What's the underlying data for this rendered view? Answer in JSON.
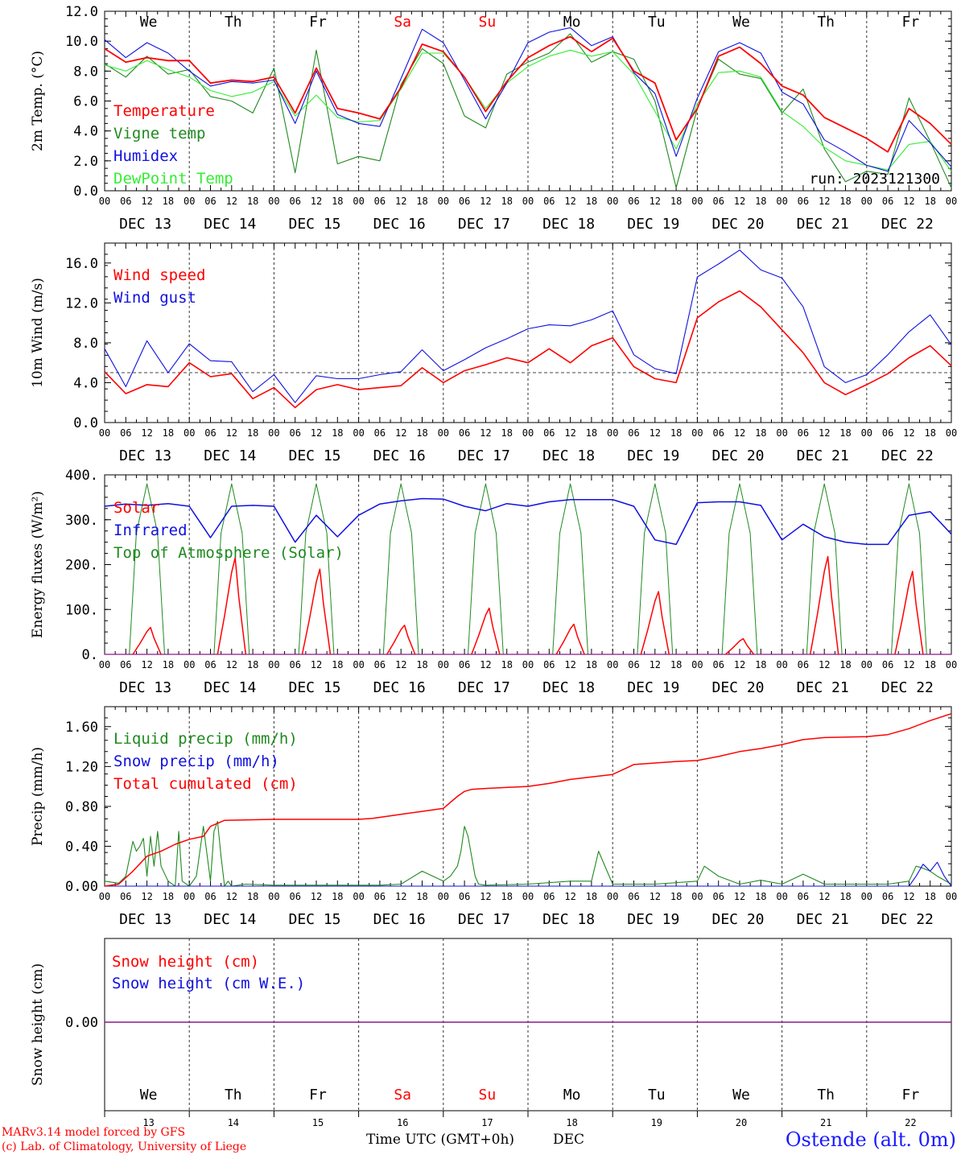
{
  "header_days": [
    "We",
    "Th",
    "Fr",
    "Sa",
    "Su",
    "Mo",
    "Tu",
    "We",
    "Th",
    "Fr"
  ],
  "weekend_days": [
    3,
    4
  ],
  "date_labels": [
    "DEC 13",
    "DEC 14",
    "DEC 15",
    "DEC 16",
    "DEC 17",
    "DEC 18",
    "DEC 19",
    "DEC 20",
    "DEC 21",
    "DEC 22"
  ],
  "hour_labels": [
    "00",
    "06",
    "12",
    "18"
  ],
  "bottom_day_numbers": [
    "13",
    "14",
    "15",
    "16",
    "17",
    "18",
    "19",
    "20",
    "21",
    "22"
  ],
  "footer": {
    "credit_line1": "MARv3.14 model forced by GFS",
    "credit_line2": "(c) Lab. of Climatology, University of Liege",
    "xaxis_title": "Time UTC (GMT+0h)",
    "month": "DEC",
    "station": "Ostende (alt. 0m)"
  },
  "run_label": "run: 2023121300",
  "colors": {
    "red": "#ff0000",
    "green": "#1f8a1f",
    "blue": "#1010e0",
    "lightgreen": "#33ee33",
    "purple": "#8a1a8a",
    "stationBlue": "#1a1aff"
  },
  "chart_data": [
    {
      "type": "line",
      "ylabel": "2m Temp. (°C)",
      "ylim": [
        0,
        12
      ],
      "y_ticks": [
        "0.0",
        "2.0",
        "4.0",
        "6.0",
        "8.0",
        "10.0",
        "12.0"
      ],
      "x_unit": "hours since DEC 13 00 UTC",
      "series": [
        {
          "name": "Temperature",
          "color": "red",
          "x": [
            0,
            6,
            12,
            18,
            24,
            30,
            36,
            42,
            48,
            54,
            60,
            66,
            72,
            78,
            84,
            90,
            96,
            102,
            108,
            114,
            120,
            126,
            132,
            138,
            144,
            150,
            156,
            162,
            168,
            174,
            180,
            186,
            192,
            198,
            204,
            210,
            216,
            222,
            228,
            234,
            240
          ],
          "y": [
            9.5,
            8.6,
            8.9,
            8.7,
            8.7,
            7.2,
            7.4,
            7.3,
            7.6,
            5.2,
            8.2,
            5.5,
            5.2,
            4.8,
            6.9,
            9.8,
            9.3,
            7.6,
            5.3,
            7.3,
            8.9,
            9.7,
            10.3,
            9.3,
            10.2,
            8.0,
            7.2,
            3.4,
            5.5,
            9.0,
            9.6,
            8.5,
            7.0,
            6.4,
            4.9,
            4.2,
            3.5,
            2.6,
            5.5,
            4.5,
            3.1
          ]
        },
        {
          "name": "Vigne temp",
          "color": "green",
          "x": [
            0,
            6,
            12,
            18,
            24,
            30,
            36,
            42,
            48,
            54,
            60,
            66,
            72,
            78,
            84,
            90,
            96,
            102,
            108,
            114,
            120,
            126,
            132,
            138,
            144,
            150,
            156,
            162,
            168,
            174,
            180,
            186,
            192,
            198,
            204,
            210,
            216,
            222,
            228,
            234,
            240
          ],
          "y": [
            8.5,
            7.6,
            9.0,
            7.8,
            8.1,
            6.3,
            6.0,
            5.2,
            8.2,
            1.2,
            9.4,
            1.8,
            2.3,
            2.0,
            7.1,
            9.5,
            8.5,
            5.0,
            4.2,
            7.8,
            8.6,
            9.2,
            10.5,
            8.6,
            9.3,
            8.8,
            6.0,
            0.2,
            5.5,
            8.8,
            7.8,
            7.5,
            5.2,
            6.8,
            2.8,
            0.6,
            1.3,
            1.1,
            6.2,
            3.3,
            0.2
          ]
        },
        {
          "name": "Humidex",
          "color": "blue",
          "x": [
            0,
            6,
            12,
            18,
            24,
            30,
            36,
            42,
            48,
            54,
            60,
            66,
            72,
            78,
            84,
            90,
            96,
            102,
            108,
            114,
            120,
            126,
            132,
            138,
            144,
            150,
            156,
            162,
            168,
            174,
            180,
            186,
            192,
            198,
            204,
            210,
            216,
            222,
            228,
            234,
            240
          ],
          "y": [
            10.1,
            8.9,
            9.9,
            9.2,
            8.0,
            7.0,
            7.3,
            7.2,
            7.4,
            4.5,
            8.0,
            5.1,
            4.5,
            4.3,
            7.5,
            10.8,
            9.9,
            7.4,
            4.8,
            7.2,
            9.9,
            10.6,
            10.9,
            9.7,
            10.3,
            7.9,
            6.5,
            2.3,
            6.2,
            9.3,
            9.9,
            9.2,
            6.6,
            5.8,
            3.4,
            2.6,
            1.7,
            1.3,
            4.7,
            3.2,
            1.6
          ]
        },
        {
          "name": "DewPoint Temp",
          "color": "lightgreen",
          "x": [
            0,
            6,
            12,
            18,
            24,
            30,
            36,
            42,
            48,
            54,
            60,
            66,
            72,
            78,
            84,
            90,
            96,
            102,
            108,
            114,
            120,
            126,
            132,
            138,
            144,
            150,
            156,
            162,
            168,
            174,
            180,
            186,
            192,
            198,
            204,
            210,
            216,
            222,
            228,
            234,
            240
          ],
          "y": [
            8.4,
            8.0,
            8.7,
            8.1,
            7.6,
            6.7,
            6.3,
            6.6,
            7.3,
            5.0,
            6.4,
            4.9,
            4.6,
            4.7,
            6.8,
            9.2,
            9.2,
            7.6,
            5.5,
            7.2,
            8.3,
            9.0,
            9.4,
            9.0,
            9.3,
            7.8,
            5.3,
            2.8,
            5.8,
            7.9,
            8.0,
            7.6,
            5.3,
            4.3,
            2.9,
            2.0,
            1.7,
            1.4,
            3.1,
            3.3,
            1.3
          ]
        }
      ]
    },
    {
      "type": "line",
      "ylabel": "10m Wind (m/s)",
      "ylim": [
        0,
        18
      ],
      "y_ticks": [
        "0.0",
        "4.0",
        "8.0",
        "12.0",
        "16.0"
      ],
      "reference_line": 5,
      "series": [
        {
          "name": "Wind speed",
          "color": "red",
          "x": [
            0,
            6,
            12,
            18,
            24,
            30,
            36,
            42,
            48,
            54,
            60,
            66,
            72,
            78,
            84,
            90,
            96,
            102,
            108,
            114,
            120,
            126,
            132,
            138,
            144,
            150,
            156,
            162,
            168,
            174,
            180,
            186,
            192,
            198,
            204,
            210,
            216,
            222,
            228,
            234,
            240
          ],
          "y": [
            5.1,
            2.9,
            3.8,
            3.6,
            6.0,
            4.6,
            4.9,
            2.4,
            3.5,
            1.5,
            3.3,
            3.8,
            3.3,
            3.5,
            3.7,
            5.5,
            4.0,
            5.2,
            5.8,
            6.5,
            6.0,
            7.4,
            6.0,
            7.7,
            8.5,
            5.6,
            4.4,
            4.0,
            10.5,
            12.1,
            13.2,
            11.6,
            9.3,
            7.0,
            4.0,
            2.8,
            3.8,
            4.9,
            6.5,
            7.7,
            5.7
          ]
        },
        {
          "name": "Wind gust",
          "color": "blue",
          "x": [
            0,
            6,
            12,
            18,
            24,
            30,
            36,
            42,
            48,
            54,
            60,
            66,
            72,
            78,
            84,
            90,
            96,
            102,
            108,
            114,
            120,
            126,
            132,
            138,
            144,
            150,
            156,
            162,
            168,
            174,
            180,
            186,
            192,
            198,
            204,
            210,
            216,
            222,
            228,
            234,
            240
          ],
          "y": [
            7.4,
            3.6,
            8.2,
            5.0,
            7.9,
            6.2,
            6.1,
            3.1,
            4.8,
            2.0,
            4.7,
            4.4,
            4.4,
            4.8,
            5.1,
            7.3,
            5.2,
            6.3,
            7.5,
            8.4,
            9.4,
            9.8,
            9.7,
            10.3,
            11.2,
            6.8,
            5.4,
            4.9,
            14.6,
            15.9,
            17.3,
            15.3,
            14.5,
            11.6,
            5.6,
            4.0,
            4.8,
            6.8,
            9.1,
            10.8,
            7.8
          ]
        }
      ]
    },
    {
      "type": "line",
      "ylabel": "Energy fluxes (W/m²)",
      "ylim": [
        0,
        400
      ],
      "y_ticks": [
        "0.",
        "100.",
        "200.",
        "300.",
        "400."
      ],
      "series": [
        {
          "name": "Solar",
          "color": "red",
          "peaks": [
            [
              0,
              60
            ],
            [
              1,
              215
            ],
            [
              2,
              190
            ],
            [
              3,
              65
            ],
            [
              4,
              103
            ],
            [
              5,
              67
            ],
            [
              6,
              140
            ],
            [
              7,
              35
            ],
            [
              8,
              218
            ],
            [
              9,
              185
            ]
          ]
        },
        {
          "name": "Infrared",
          "color": "blue",
          "x": [
            0,
            6,
            12,
            18,
            24,
            30,
            36,
            42,
            48,
            54,
            60,
            66,
            72,
            78,
            84,
            90,
            96,
            102,
            108,
            114,
            120,
            126,
            132,
            138,
            144,
            150,
            156,
            162,
            168,
            174,
            180,
            186,
            192,
            198,
            204,
            210,
            216,
            222,
            228,
            234,
            240
          ],
          "y": [
            330,
            335,
            332,
            336,
            330,
            260,
            330,
            332,
            330,
            250,
            310,
            262,
            310,
            335,
            342,
            347,
            346,
            330,
            320,
            336,
            330,
            340,
            345,
            345,
            345,
            330,
            255,
            245,
            338,
            340,
            340,
            332,
            255,
            290,
            262,
            250,
            245,
            245,
            310,
            318,
            268
          ]
        },
        {
          "name": "Top of Atmosphere (Solar)",
          "color": "green",
          "peak": 380
        }
      ]
    },
    {
      "type": "line",
      "ylabel": "Precip (mm/h)",
      "ylim": [
        0,
        1.8
      ],
      "y_ticks": [
        "0.00",
        "0.40",
        "0.80",
        "1.20",
        "1.60"
      ],
      "series": [
        {
          "name": "Liquid precip (mm/h)",
          "color": "green",
          "x": [
            0,
            4,
            6,
            8,
            9,
            10,
            11,
            12,
            13,
            14,
            15,
            16,
            18,
            20,
            21,
            22,
            24,
            26,
            28,
            30,
            31,
            32,
            33,
            34,
            35,
            36,
            40,
            48,
            60,
            72,
            78,
            84,
            90,
            96,
            98,
            100,
            101,
            102,
            103,
            104,
            105,
            106,
            108,
            120,
            132,
            138,
            140,
            144,
            156,
            168,
            170,
            174,
            180,
            186,
            192,
            198,
            204,
            216,
            222,
            228,
            230,
            232,
            234,
            236,
            240
          ],
          "y": [
            0.05,
            0.03,
            0.1,
            0.45,
            0.35,
            0.4,
            0.48,
            0.1,
            0.5,
            0.2,
            0.55,
            0.2,
            0.05,
            0.0,
            0.55,
            0.05,
            0.0,
            0.1,
            0.6,
            0.05,
            0.55,
            0.65,
            0.3,
            0.0,
            0.05,
            0.0,
            0.02,
            0.01,
            0.01,
            0.01,
            0.01,
            0.02,
            0.15,
            0.05,
            0.1,
            0.2,
            0.35,
            0.6,
            0.5,
            0.3,
            0.1,
            0.02,
            0.01,
            0.02,
            0.05,
            0.05,
            0.35,
            0.02,
            0.02,
            0.05,
            0.2,
            0.1,
            0.02,
            0.06,
            0.02,
            0.12,
            0.02,
            0.02,
            0.02,
            0.05,
            0.2,
            0.18,
            0.15,
            0.1,
            0.02
          ]
        },
        {
          "name": "Snow precip (mm/h)",
          "color": "blue",
          "x": [
            0,
            228,
            230,
            232,
            234,
            236,
            238,
            240
          ],
          "y": [
            0,
            0,
            0.1,
            0.22,
            0.15,
            0.24,
            0.1,
            0.0
          ]
        },
        {
          "name": "Total cumulated (cm)",
          "color": "red",
          "x": [
            0,
            4,
            8,
            12,
            16,
            20,
            24,
            28,
            30,
            34,
            48,
            72,
            76,
            84,
            90,
            96,
            100,
            102,
            104,
            108,
            120,
            126,
            132,
            144,
            150,
            162,
            168,
            174,
            180,
            186,
            192,
            198,
            204,
            216,
            222,
            228,
            234,
            240
          ],
          "y": [
            0,
            0.02,
            0.15,
            0.3,
            0.35,
            0.42,
            0.47,
            0.5,
            0.6,
            0.66,
            0.67,
            0.67,
            0.68,
            0.72,
            0.75,
            0.78,
            0.9,
            0.95,
            0.97,
            0.98,
            1.0,
            1.03,
            1.07,
            1.12,
            1.22,
            1.25,
            1.26,
            1.3,
            1.35,
            1.38,
            1.42,
            1.47,
            1.49,
            1.5,
            1.52,
            1.58,
            1.66,
            1.73
          ]
        }
      ]
    },
    {
      "type": "line",
      "ylabel": "Snow height (cm)",
      "y_ticks": [
        "0.00"
      ],
      "series": [
        {
          "name": "Snow height (cm)",
          "color": "red",
          "x": [
            0,
            240
          ],
          "y": [
            0,
            0
          ]
        },
        {
          "name": "Snow height (cm W.E.)",
          "color": "blue",
          "x": [
            0,
            240
          ],
          "y": [
            0,
            0
          ]
        }
      ]
    }
  ]
}
